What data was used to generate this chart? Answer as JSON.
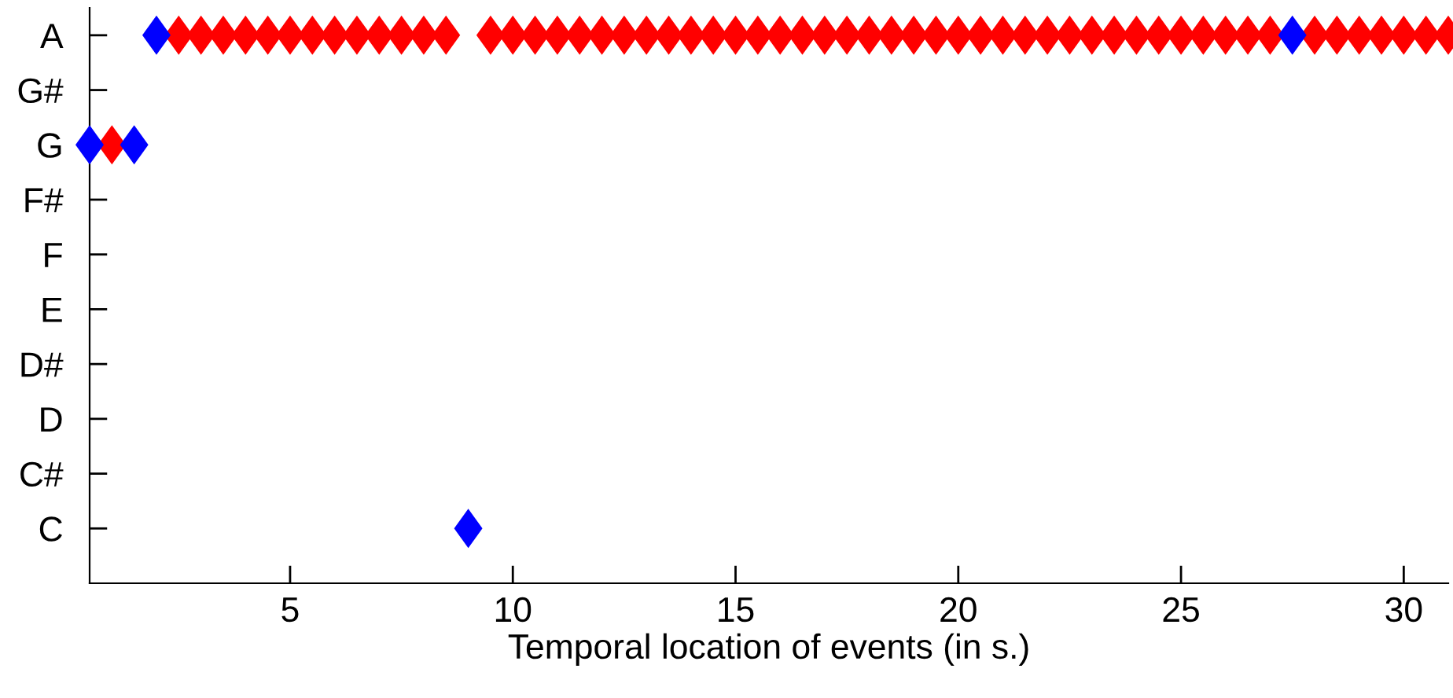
{
  "chart_data": {
    "type": "scatter",
    "orientation": "horizontal",
    "xlabel": "Temporal location of events (in s.)",
    "xlim": [
      0.5,
      31
    ],
    "xticks": [
      5,
      10,
      15,
      20,
      25,
      30
    ],
    "categories": [
      "A",
      "G#",
      "G",
      "F#",
      "F",
      "E",
      "D#",
      "D",
      "C#",
      "C"
    ],
    "marker": "diamond",
    "grid": false,
    "series": [
      {
        "color": "#ff0000",
        "x": [
          "G",
          "A",
          "A",
          "A",
          "A",
          "A",
          "A",
          "A",
          "A",
          "A",
          "A",
          "A",
          "A",
          "A",
          "A",
          "A",
          "A",
          "A",
          "A",
          "A",
          "A",
          "A",
          "A",
          "A",
          "A",
          "A",
          "A",
          "A",
          "A",
          "A",
          "A",
          "A",
          "A",
          "A",
          "A",
          "A",
          "A",
          "A",
          "A",
          "A",
          "A",
          "A",
          "A",
          "A",
          "A",
          "A",
          "A",
          "A",
          "A",
          "A",
          "A",
          "A",
          "A",
          "A",
          "A",
          "A",
          "A"
        ],
        "values": [
          1,
          2.5,
          3,
          3.5,
          4,
          4.5,
          5,
          5.5,
          6,
          6.5,
          7,
          7.5,
          8,
          8.5,
          9.5,
          10,
          10.5,
          11,
          11.5,
          12,
          12.5,
          13,
          13.5,
          14,
          14.5,
          15,
          15.5,
          16,
          16.5,
          17,
          17.5,
          18,
          18.5,
          19,
          19.5,
          20,
          20.5,
          21,
          21.5,
          22,
          22.5,
          23,
          23.5,
          24,
          24.5,
          25,
          25.5,
          26,
          26.5,
          27,
          28,
          28.5,
          29,
          29.5,
          30,
          30.5,
          31
        ]
      },
      {
        "color": "#0000ff",
        "x": [
          "G",
          "G",
          "A",
          "C",
          "A"
        ],
        "values": [
          0.5,
          1.5,
          2,
          9,
          27.5
        ]
      }
    ]
  }
}
